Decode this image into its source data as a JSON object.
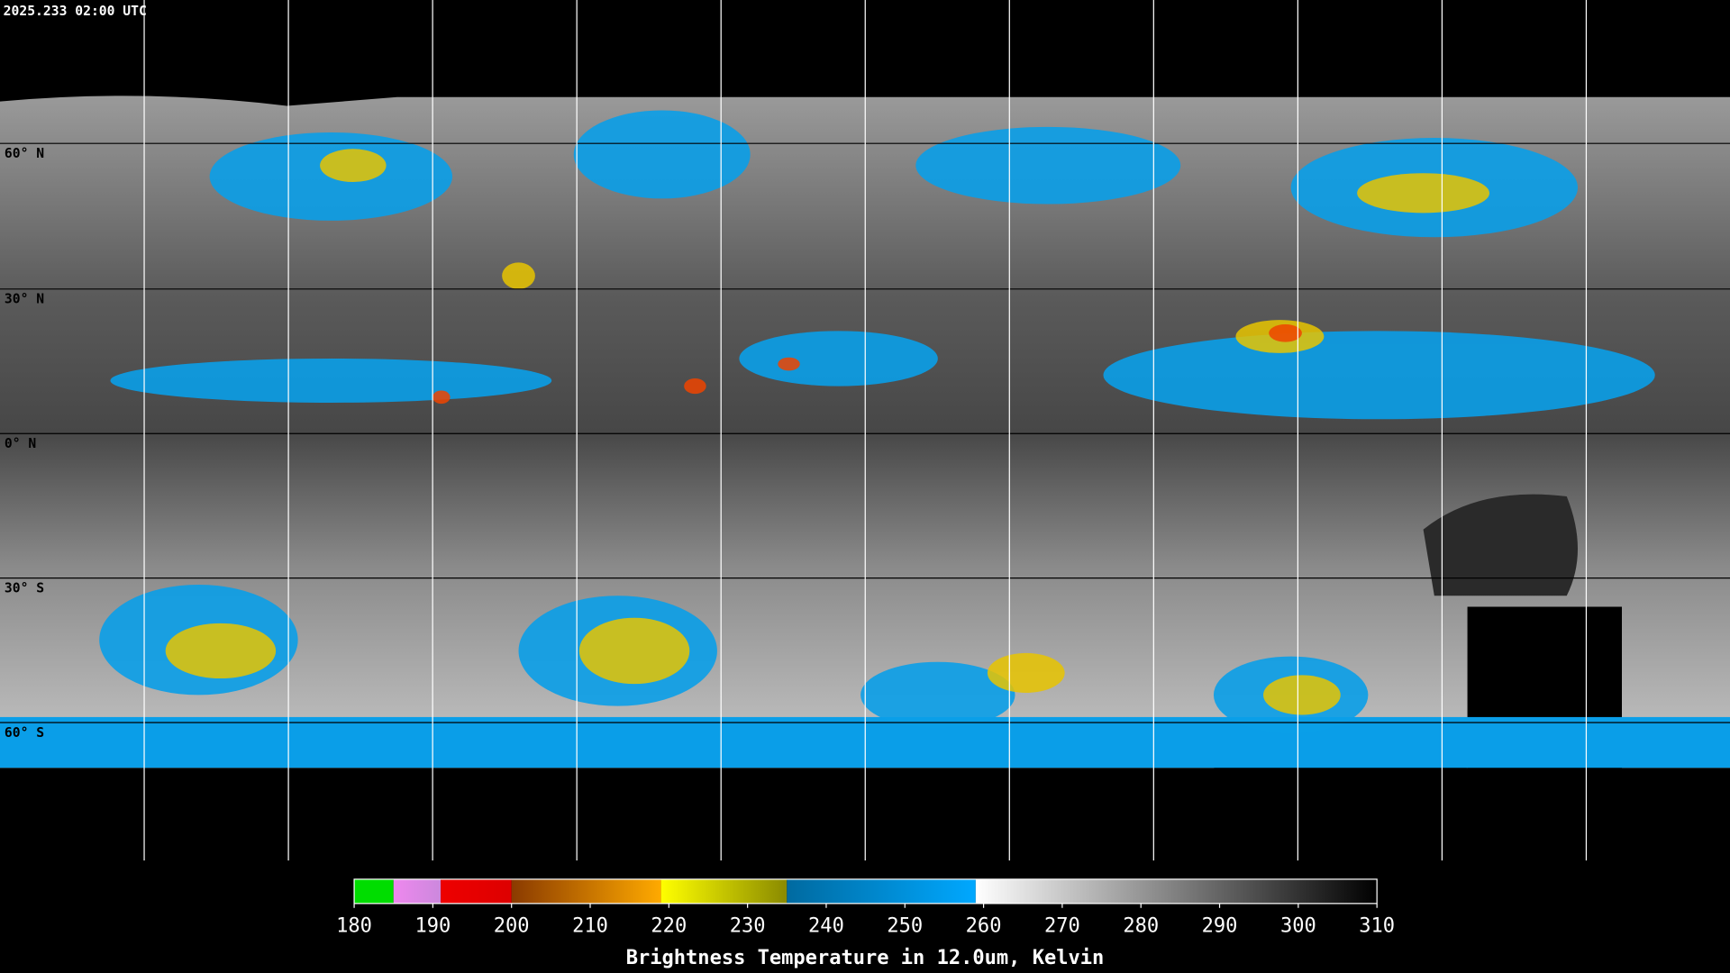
{
  "header": {
    "title": "2025.233 02:00 UTC"
  },
  "map": {
    "lat_labels": [
      "60° N",
      "30° N",
      "0° N",
      "30° S",
      "60° S"
    ]
  },
  "colorbar": {
    "range": [
      180,
      310
    ],
    "ticks": [
      180,
      190,
      200,
      210,
      220,
      230,
      240,
      250,
      260,
      270,
      280,
      290,
      300,
      310
    ],
    "segments": [
      {
        "from": 180,
        "to": 185,
        "colors": [
          "#00dd00",
          "#00dd00"
        ]
      },
      {
        "from": 185,
        "to": 191,
        "colors": [
          "#ee88ee",
          "#cc88dd"
        ]
      },
      {
        "from": 191,
        "to": 200,
        "colors": [
          "#ee0000",
          "#dd0000"
        ]
      },
      {
        "from": 200,
        "to": 219,
        "colors": [
          "#8a3a00",
          "#ffaa00"
        ]
      },
      {
        "from": 219,
        "to": 235,
        "colors": [
          "#ffff00",
          "#8a8a00"
        ]
      },
      {
        "from": 235,
        "to": 259,
        "colors": [
          "#006aa0",
          "#00a8ff"
        ]
      },
      {
        "from": 259,
        "to": 310,
        "colors": [
          "#ffffff",
          "#000000"
        ]
      }
    ],
    "label": "Brightness Temperature in 12.0um, Kelvin"
  }
}
